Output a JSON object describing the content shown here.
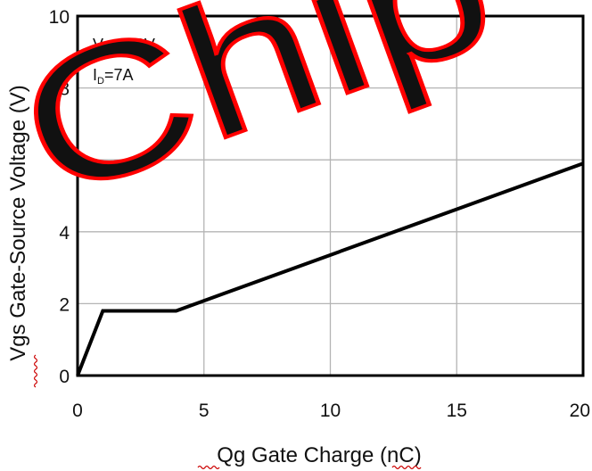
{
  "chart_data": {
    "type": "line",
    "xlabel": "Qg Gate Charge (nC)",
    "ylabel": "Vgs Gate-Source Voltage (V)",
    "xlim": [
      0,
      20
    ],
    "ylim": [
      0,
      10
    ],
    "x_ticks": [
      "0",
      "5",
      "10",
      "15",
      "20"
    ],
    "y_ticks": [
      "0",
      "2",
      "4",
      "6",
      "8",
      "10"
    ],
    "grid": true,
    "series": [
      {
        "x": [
          0,
          1.0,
          3.9,
          20
        ],
        "y": [
          0,
          1.8,
          1.8,
          5.9
        ]
      }
    ],
    "annotations": {
      "vds_symbol": "V",
      "vds_sub": "DS",
      "vds_value": "=10V",
      "id_symbol": "I",
      "id_sub": "D",
      "id_value": "=7A"
    },
    "watermark": "Chip",
    "colors": {
      "line": "#000000",
      "grid": "#b4b4b4",
      "frame": "#000000",
      "watermark": "#ff0000",
      "squiggle": "#cc0000"
    }
  }
}
